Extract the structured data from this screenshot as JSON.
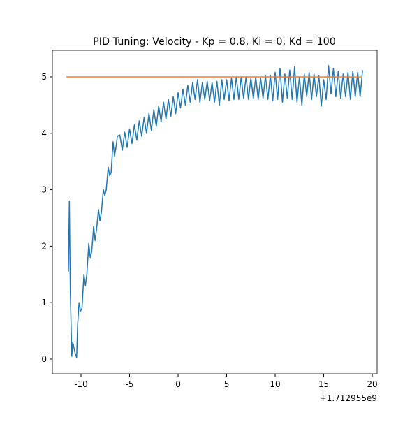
{
  "chart_data": {
    "type": "line",
    "title": "PID Tuning: Velocity - Kp = 0.8, Ki = 0, Kd = 100",
    "x_offset_label": "+1.712955e9",
    "xlim": [
      -12.95,
      20.5
    ],
    "ylim": [
      -0.26,
      5.47
    ],
    "xticks": [
      -10,
      -5,
      0,
      5,
      10,
      15,
      20
    ],
    "yticks": [
      0,
      1,
      2,
      3,
      4,
      5
    ],
    "series": [
      {
        "color": "#1f77b4",
        "x": [
          -11.3,
          -11.2,
          -11.1,
          -10.95,
          -10.85,
          -10.75,
          -10.6,
          -10.45,
          -10.35,
          -10.2,
          -10.05,
          -9.9,
          -9.7,
          -9.55,
          -9.4,
          -9.2,
          -9.05,
          -8.9,
          -8.7,
          -8.55,
          -8.4,
          -8.2,
          -8.05,
          -7.9,
          -7.7,
          -7.55,
          -7.4,
          -7.2,
          -7.05,
          -6.9,
          -6.7,
          -6.55,
          -6.4,
          -6.25,
          -6.0,
          -5.75,
          -5.5,
          -5.25,
          -5.0,
          -4.75,
          -4.5,
          -4.25,
          -4.0,
          -3.75,
          -3.5,
          -3.25,
          -3.0,
          -2.75,
          -2.5,
          -2.25,
          -2.0,
          -1.75,
          -1.5,
          -1.25,
          -1.0,
          -0.75,
          -0.5,
          -0.25,
          0,
          0.25,
          0.5,
          0.75,
          1.0,
          1.25,
          1.5,
          1.75,
          2.0,
          2.25,
          2.5,
          2.75,
          3.0,
          3.25,
          3.5,
          3.75,
          4.0,
          4.25,
          4.5,
          4.75,
          5.0,
          5.25,
          5.5,
          5.75,
          6.0,
          6.25,
          6.5,
          6.75,
          7.0,
          7.25,
          7.5,
          7.75,
          8.0,
          8.25,
          8.5,
          8.75,
          9.0,
          9.25,
          9.5,
          9.75,
          10.0,
          10.25,
          10.5,
          10.75,
          11.0,
          11.25,
          11.5,
          11.75,
          12.0,
          12.25,
          12.5,
          12.75,
          13.0,
          13.25,
          13.5,
          13.75,
          14.0,
          14.25,
          14.5,
          14.75,
          15.0,
          15.25,
          15.5,
          15.75,
          16.0,
          16.25,
          16.5,
          16.75,
          17.0,
          17.25,
          17.5,
          17.75,
          18.0,
          18.25,
          18.5,
          18.75,
          19.0
        ],
        "values": [
          1.55,
          2.8,
          1.2,
          0.05,
          0.3,
          0.22,
          0.1,
          0.03,
          0.6,
          1.0,
          0.85,
          0.9,
          1.5,
          1.3,
          1.5,
          2.05,
          1.8,
          1.9,
          2.35,
          2.1,
          2.3,
          2.65,
          2.45,
          2.6,
          3.0,
          2.9,
          3.0,
          3.4,
          3.25,
          3.3,
          3.85,
          3.6,
          3.75,
          3.95,
          3.97,
          3.7,
          4.02,
          3.75,
          4.08,
          3.82,
          4.15,
          3.88,
          4.22,
          3.95,
          4.28,
          4.0,
          4.35,
          4.05,
          4.42,
          4.12,
          4.48,
          4.2,
          4.55,
          4.25,
          4.6,
          4.3,
          4.65,
          4.35,
          4.72,
          4.45,
          4.78,
          4.5,
          4.85,
          4.55,
          4.9,
          4.6,
          4.95,
          4.55,
          4.9,
          4.6,
          4.92,
          4.58,
          4.9,
          4.55,
          4.92,
          4.5,
          4.95,
          4.6,
          4.95,
          4.58,
          4.98,
          4.6,
          5.0,
          4.6,
          5.0,
          4.62,
          5.0,
          4.6,
          4.98,
          4.62,
          5.0,
          4.6,
          4.98,
          4.62,
          5.02,
          4.6,
          5.03,
          4.58,
          5.08,
          4.6,
          5.15,
          4.55,
          5.05,
          4.62,
          5.12,
          4.6,
          5.18,
          4.55,
          5.0,
          4.5,
          5.05,
          4.65,
          5.08,
          4.6,
          5.05,
          4.65,
          5.02,
          4.48,
          4.95,
          4.6,
          5.2,
          4.7,
          5.15,
          4.65,
          5.1,
          4.62,
          5.05,
          4.65,
          5.08,
          4.6,
          5.1,
          4.65,
          5.08,
          4.65,
          5.12
        ]
      },
      {
        "color": "#ff7f0e",
        "x": [
          -11.5,
          19.0
        ],
        "values": [
          5,
          5
        ]
      }
    ]
  }
}
